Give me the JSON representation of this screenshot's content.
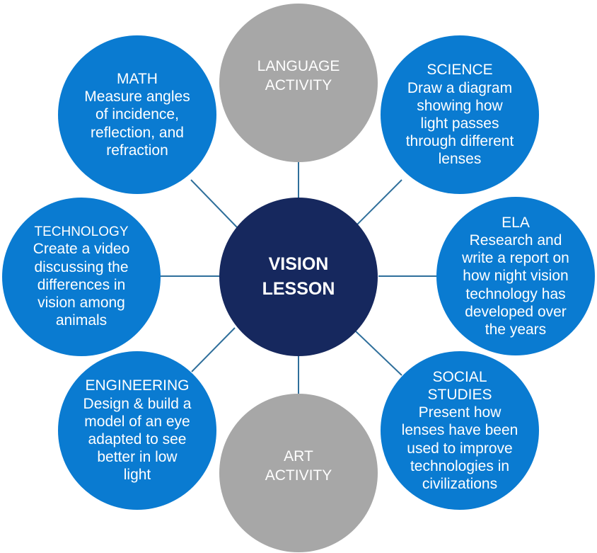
{
  "colors": {
    "blue": "#0a7bd1",
    "gray": "#a7a7a7",
    "center": "#16285e",
    "line": "#2f6f9b"
  },
  "center": {
    "title": "VISION\nLESSON"
  },
  "nodes": {
    "language": {
      "title": "LANGUAGE\nACTIVITY",
      "body": ""
    },
    "science": {
      "title": "SCIENCE",
      "body": "Draw a diagram\nshowing how\nlight passes\nthrough different\nlenses"
    },
    "ela": {
      "title": "ELA",
      "body": "Research and\nwrite a report on\nhow night vision\ntechnology has\ndeveloped over\nthe years"
    },
    "social": {
      "title": "SOCIAL\nSTUDIES",
      "body": "Present how\nlenses have been\nused to improve\ntechnologies in\ncivilizations"
    },
    "art": {
      "title": "ART\nACTIVITY",
      "body": ""
    },
    "engineering": {
      "title": "ENGINEERING",
      "body": "Design & build a\nmodel of an eye\nadapted to see\nbetter in low\nlight"
    },
    "technology": {
      "title": "TECHNOLOGY",
      "body": "Create a video\ndiscussing the\ndifferences in\nvision among\nanimals"
    },
    "math": {
      "title": "MATH",
      "body": "Measure angles\nof incidence,\nreflection, and\nrefraction"
    }
  }
}
